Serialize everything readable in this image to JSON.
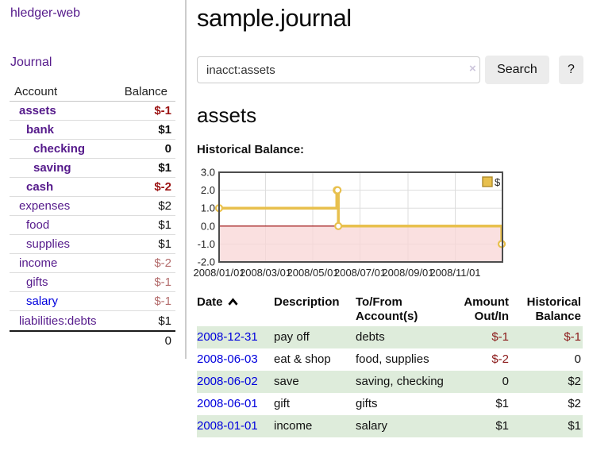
{
  "app": {
    "brand": "hledger-web"
  },
  "nav": {
    "journal": "Journal"
  },
  "sidebar": {
    "account_header": "Account",
    "balance_header": "Balance",
    "accounts": [
      {
        "name": "assets",
        "balance": "$-1",
        "depth": 1,
        "matched": true
      },
      {
        "name": "bank",
        "balance": "$1",
        "depth": 2,
        "matched": true
      },
      {
        "name": "checking",
        "balance": "0",
        "depth": 3,
        "matched": true
      },
      {
        "name": "saving",
        "balance": "$1",
        "depth": 3,
        "matched": true
      },
      {
        "name": "cash",
        "balance": "$-2",
        "depth": 2,
        "matched": true
      },
      {
        "name": "expenses",
        "balance": "$2",
        "depth": 1,
        "matched": false
      },
      {
        "name": "food",
        "balance": "$1",
        "depth": 2,
        "matched": false
      },
      {
        "name": "supplies",
        "balance": "$1",
        "depth": 2,
        "matched": false
      },
      {
        "name": "income",
        "balance": "$-2",
        "depth": 1,
        "matched": false
      },
      {
        "name": "gifts",
        "balance": "$-1",
        "depth": 2,
        "matched": false
      },
      {
        "name": "salary",
        "balance": "$-1",
        "depth": 2,
        "matched": false,
        "link_style": "blue"
      },
      {
        "name": "liabilities:debts",
        "balance": "$1",
        "depth": 1,
        "matched": false,
        "last": true
      }
    ],
    "total": "0"
  },
  "main": {
    "title": "sample.journal",
    "search": {
      "value": "inacct:assets",
      "clear_icon": "×",
      "search_button": "Search",
      "help_button": "?"
    },
    "account_title": "assets",
    "chart_heading": "Historical Balance:"
  },
  "chart_data": {
    "type": "line",
    "title": "Historical Balance",
    "step": "after",
    "series": [
      {
        "name": "$",
        "color": "#e8c04d",
        "points": [
          {
            "date": "2008-01-01",
            "value": 1
          },
          {
            "date": "2008-06-01",
            "value": 2
          },
          {
            "date": "2008-06-02",
            "value": 2
          },
          {
            "date": "2008-06-03",
            "value": 0
          },
          {
            "date": "2008-12-31",
            "value": -1
          }
        ]
      }
    ],
    "x_range": [
      "2008-01-01",
      "2009-01-01"
    ],
    "x_tick_labels": [
      "2008/01/01",
      "2008/03/01",
      "2008/05/01",
      "2008/07/01",
      "2008/09/01",
      "2008/11/01"
    ],
    "y_ticks": [
      3.0,
      2.0,
      1.0,
      0.0,
      -1.0,
      -2.0
    ],
    "y_tick_labels": [
      "3.0",
      "2.0",
      "1.0",
      "0.0",
      "-1.0",
      "-2.0"
    ],
    "ylim": [
      -2,
      3
    ],
    "grid": true,
    "legend": {
      "label": "$",
      "position": "top-right"
    },
    "negative_region_color": "#f8d6d6",
    "zero_line_color": "#990000",
    "line_color": "#e8c04d",
    "border_color": "#4d4d4d"
  },
  "register": {
    "columns": {
      "date": "Date",
      "description": "Description",
      "accounts": "To/From Account(s)",
      "amount": "Amount Out/In",
      "balance": "Historical Balance"
    },
    "sort": {
      "column": "date",
      "direction": "ascending"
    },
    "rows": [
      {
        "date": "2008-12-31",
        "description": "pay off",
        "accounts": "debts",
        "amount": "$-1",
        "balance": "$-1"
      },
      {
        "date": "2008-06-03",
        "description": "eat & shop",
        "accounts": "food, supplies",
        "amount": "$-2",
        "balance": "0"
      },
      {
        "date": "2008-06-02",
        "description": "save",
        "accounts": "saving, checking",
        "amount": "0",
        "balance": "$2"
      },
      {
        "date": "2008-06-01",
        "description": "gift",
        "accounts": "gifts",
        "amount": "$1",
        "balance": "$2"
      },
      {
        "date": "2008-01-01",
        "description": "income",
        "accounts": "salary",
        "amount": "$1",
        "balance": "$1"
      }
    ]
  },
  "colors": {
    "link_purple": "#551a8b",
    "link_blue": "#0000dd",
    "negative_strong": "#9b1313",
    "negative_dim": "#b36b6b",
    "negative_table": "#8b1a1a",
    "row_green": "#deecdb",
    "button_gray": "#ececec"
  }
}
